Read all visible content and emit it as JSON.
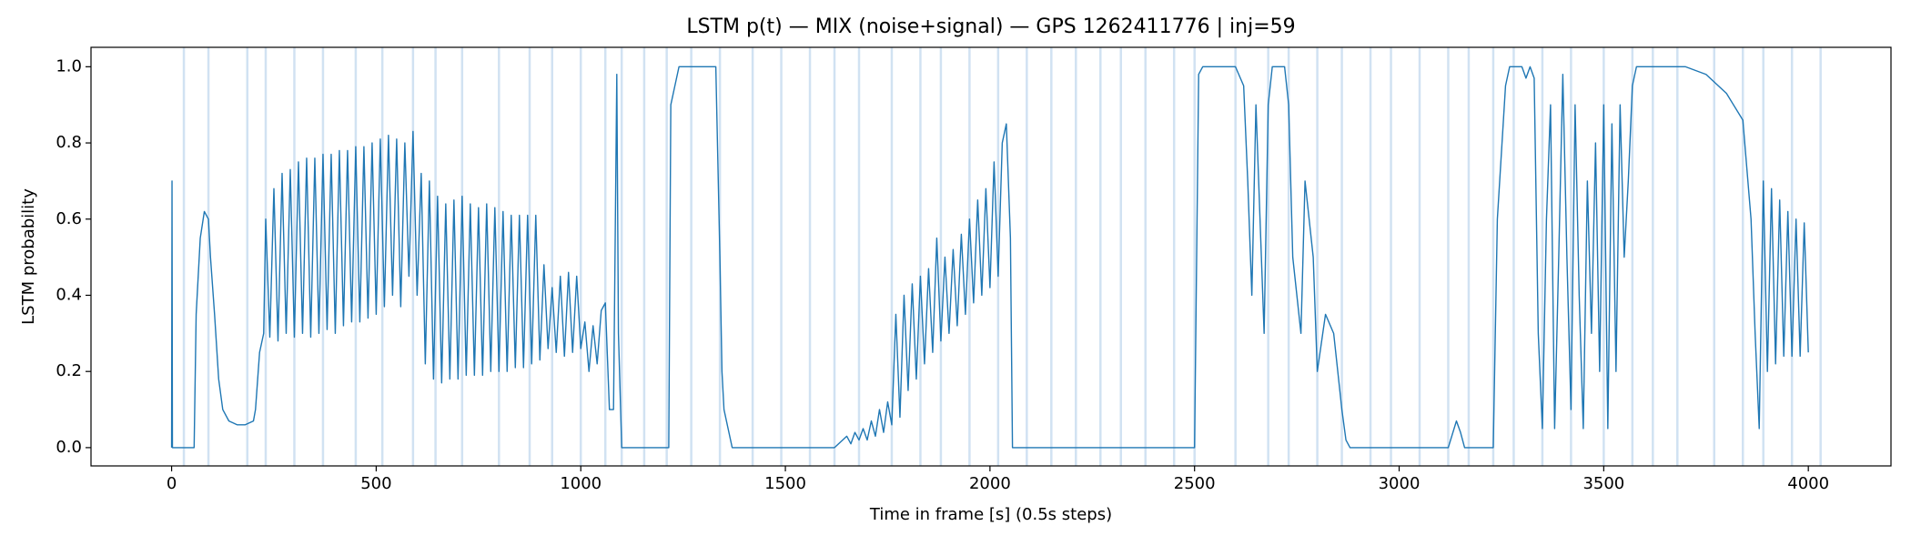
{
  "chart_data": {
    "type": "line",
    "title": "LSTM p(t) — MIX (noise+signal) — GPS 1262411776 | inj=59",
    "xlabel": "Time in frame [s] (0.5s steps)",
    "ylabel": "LSTM probability",
    "xlim": [
      -197,
      4202
    ],
    "ylim": [
      -0.048,
      1.051
    ],
    "xticks": [
      0,
      500,
      1000,
      1500,
      2000,
      2500,
      3000,
      3500,
      4000
    ],
    "yticks": [
      {
        "value": 0,
        "label": "0.0"
      },
      0.2,
      0.4,
      0.6,
      0.8,
      {
        "value": 1,
        "label": "1.0"
      }
    ],
    "marker_color": "#c6dbef",
    "markers_x": [
      30,
      90,
      185,
      230,
      300,
      370,
      450,
      515,
      590,
      645,
      710,
      800,
      875,
      930,
      1000,
      1060,
      1100,
      1155,
      1210,
      1270,
      1340,
      1420,
      1490,
      1560,
      1620,
      1680,
      1760,
      1830,
      1880,
      1950,
      2020,
      2090,
      2150,
      2210,
      2270,
      2320,
      2380,
      2450,
      2500,
      2600,
      2680,
      2730,
      2800,
      2860,
      2930,
      2980,
      3050,
      3120,
      3170,
      3230,
      3280,
      3350,
      3420,
      3500,
      3570,
      3620,
      3680,
      3770,
      3840,
      3890,
      3960,
      4030
    ],
    "series": [
      {
        "color": "#1f77b4",
        "x": [
          0,
          1,
          2,
          55,
          60,
          70,
          80,
          90,
          95,
          105,
          115,
          125,
          140,
          160,
          180,
          200,
          205,
          215,
          225,
          230,
          240,
          250,
          260,
          270,
          280,
          290,
          300,
          310,
          320,
          330,
          340,
          350,
          360,
          370,
          380,
          390,
          400,
          410,
          420,
          430,
          440,
          450,
          460,
          470,
          480,
          490,
          500,
          510,
          520,
          530,
          540,
          550,
          560,
          570,
          580,
          590,
          600,
          610,
          620,
          630,
          640,
          650,
          660,
          670,
          680,
          690,
          700,
          710,
          720,
          730,
          740,
          750,
          760,
          770,
          780,
          790,
          800,
          810,
          820,
          830,
          840,
          850,
          860,
          870,
          880,
          890,
          900,
          910,
          920,
          930,
          940,
          950,
          960,
          970,
          980,
          990,
          1000,
          1010,
          1020,
          1030,
          1040,
          1050,
          1060,
          1070,
          1080,
          1088,
          1092,
          1100,
          1215,
          1220,
          1230,
          1240,
          1330,
          1340,
          1345,
          1350,
          1360,
          1370,
          1620,
          1650,
          1660,
          1670,
          1680,
          1690,
          1700,
          1710,
          1720,
          1730,
          1740,
          1750,
          1760,
          1770,
          1780,
          1790,
          1800,
          1810,
          1820,
          1830,
          1840,
          1850,
          1860,
          1870,
          1880,
          1890,
          1900,
          1910,
          1920,
          1930,
          1940,
          1950,
          1960,
          1970,
          1980,
          1990,
          2000,
          2010,
          2020,
          2030,
          2040,
          2050,
          2055,
          2500,
          2510,
          2520,
          2600,
          2620,
          2630,
          2640,
          2650,
          2660,
          2670,
          2680,
          2690,
          2720,
          2730,
          2740,
          2760,
          2770,
          2790,
          2800,
          2820,
          2840,
          2850,
          2860,
          2870,
          2880,
          3120,
          3140,
          3150,
          3160,
          3230,
          3240,
          3260,
          3270,
          3300,
          3310,
          3320,
          3330,
          3340,
          3350,
          3360,
          3370,
          3380,
          3390,
          3400,
          3410,
          3420,
          3430,
          3440,
          3450,
          3460,
          3470,
          3480,
          3490,
          3500,
          3510,
          3520,
          3530,
          3540,
          3550,
          3560,
          3570,
          3580,
          3700,
          3750,
          3800,
          3840,
          3860,
          3870,
          3880,
          3890,
          3900,
          3910,
          3920,
          3930,
          3940,
          3950,
          3960,
          3970,
          3980,
          3990,
          4000
        ],
        "values": [
          0.0,
          0.7,
          0.0,
          0.0,
          0.35,
          0.55,
          0.62,
          0.6,
          0.5,
          0.35,
          0.18,
          0.1,
          0.07,
          0.06,
          0.06,
          0.07,
          0.1,
          0.25,
          0.3,
          0.6,
          0.29,
          0.68,
          0.28,
          0.72,
          0.3,
          0.73,
          0.29,
          0.75,
          0.3,
          0.76,
          0.29,
          0.76,
          0.3,
          0.77,
          0.31,
          0.77,
          0.3,
          0.78,
          0.32,
          0.78,
          0.33,
          0.79,
          0.33,
          0.79,
          0.34,
          0.8,
          0.35,
          0.81,
          0.37,
          0.82,
          0.4,
          0.81,
          0.37,
          0.8,
          0.45,
          0.83,
          0.4,
          0.72,
          0.22,
          0.7,
          0.18,
          0.66,
          0.17,
          0.64,
          0.18,
          0.65,
          0.18,
          0.66,
          0.19,
          0.64,
          0.19,
          0.63,
          0.19,
          0.64,
          0.2,
          0.63,
          0.2,
          0.62,
          0.2,
          0.61,
          0.21,
          0.61,
          0.21,
          0.61,
          0.22,
          0.61,
          0.23,
          0.48,
          0.26,
          0.42,
          0.25,
          0.45,
          0.24,
          0.46,
          0.25,
          0.45,
          0.26,
          0.33,
          0.2,
          0.32,
          0.22,
          0.36,
          0.38,
          0.1,
          0.1,
          0.98,
          0.3,
          0.0,
          0.0,
          0.9,
          0.95,
          1.0,
          1.0,
          0.5,
          0.2,
          0.1,
          0.05,
          0.0,
          0.0,
          0.03,
          0.01,
          0.04,
          0.02,
          0.05,
          0.02,
          0.07,
          0.03,
          0.1,
          0.04,
          0.12,
          0.06,
          0.35,
          0.08,
          0.4,
          0.15,
          0.43,
          0.18,
          0.45,
          0.22,
          0.47,
          0.25,
          0.55,
          0.28,
          0.5,
          0.3,
          0.52,
          0.32,
          0.56,
          0.35,
          0.6,
          0.38,
          0.65,
          0.4,
          0.68,
          0.42,
          0.75,
          0.45,
          0.8,
          0.85,
          0.55,
          0.0,
          0.0,
          0.98,
          1.0,
          1.0,
          0.95,
          0.7,
          0.4,
          0.9,
          0.6,
          0.3,
          0.9,
          1.0,
          1.0,
          0.9,
          0.5,
          0.3,
          0.7,
          0.5,
          0.2,
          0.35,
          0.3,
          0.2,
          0.1,
          0.02,
          0.0,
          0.0,
          0.07,
          0.04,
          0.0,
          0.0,
          0.6,
          0.95,
          1.0,
          1.0,
          0.97,
          1.0,
          0.97,
          0.3,
          0.05,
          0.6,
          0.9,
          0.05,
          0.5,
          0.98,
          0.5,
          0.1,
          0.9,
          0.4,
          0.05,
          0.7,
          0.3,
          0.8,
          0.2,
          0.9,
          0.05,
          0.85,
          0.2,
          0.9,
          0.5,
          0.7,
          0.95,
          1.0,
          1.0,
          0.98,
          0.93,
          0.86,
          0.6,
          0.3,
          0.05,
          0.7,
          0.2,
          0.68,
          0.22,
          0.65,
          0.24,
          0.62,
          0.24,
          0.6,
          0.24,
          0.59,
          0.25
        ]
      }
    ]
  }
}
